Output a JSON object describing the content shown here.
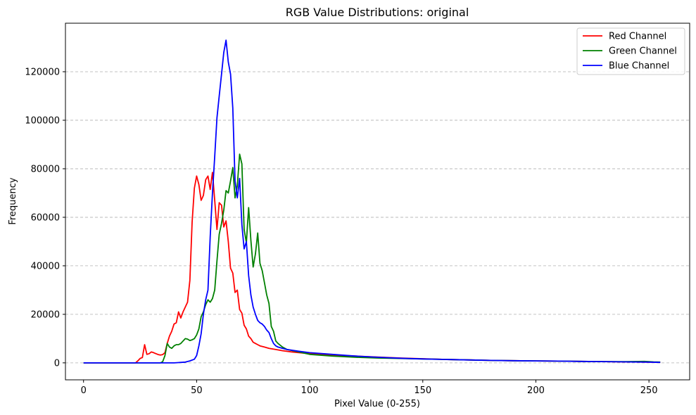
{
  "chart_data": {
    "type": "line",
    "title": "RGB Value Distributions: original",
    "xlabel": "Pixel Value (0-255)",
    "ylabel": "Frequency",
    "xlim": [
      -8,
      268
    ],
    "ylim": [
      -7000,
      140000
    ],
    "x_ticks": [
      0,
      50,
      100,
      150,
      200,
      250
    ],
    "y_ticks": [
      0,
      20000,
      40000,
      60000,
      80000,
      100000,
      120000
    ],
    "grid": "y-dashed",
    "legend": "top-right",
    "series": [
      {
        "name": "Red Channel",
        "color": "#ff0000",
        "points": [
          [
            0,
            0
          ],
          [
            10,
            0
          ],
          [
            20,
            0
          ],
          [
            23,
            0
          ],
          [
            24,
            800
          ],
          [
            25,
            1800
          ],
          [
            26,
            2200
          ],
          [
            27,
            7500
          ],
          [
            28,
            3500
          ],
          [
            29,
            3800
          ],
          [
            30,
            4500
          ],
          [
            31,
            4200
          ],
          [
            32,
            3800
          ],
          [
            33,
            3400
          ],
          [
            34,
            3200
          ],
          [
            35,
            3400
          ],
          [
            36,
            4200
          ],
          [
            37,
            8000
          ],
          [
            38,
            11000
          ],
          [
            39,
            13000
          ],
          [
            40,
            16000
          ],
          [
            41,
            16500
          ],
          [
            42,
            21000
          ],
          [
            43,
            18500
          ],
          [
            44,
            21000
          ],
          [
            45,
            23000
          ],
          [
            46,
            25000
          ],
          [
            47,
            34000
          ],
          [
            48,
            58000
          ],
          [
            49,
            72000
          ],
          [
            50,
            77000
          ],
          [
            51,
            73500
          ],
          [
            52,
            67000
          ],
          [
            53,
            69000
          ],
          [
            54,
            75500
          ],
          [
            55,
            77000
          ],
          [
            56,
            71500
          ],
          [
            57,
            78500
          ],
          [
            58,
            67000
          ],
          [
            59,
            55000
          ],
          [
            60,
            66000
          ],
          [
            61,
            65000
          ],
          [
            62,
            56000
          ],
          [
            63,
            58500
          ],
          [
            64,
            50000
          ],
          [
            65,
            39000
          ],
          [
            66,
            37000
          ],
          [
            67,
            29000
          ],
          [
            68,
            30000
          ],
          [
            69,
            22000
          ],
          [
            70,
            20500
          ],
          [
            71,
            15500
          ],
          [
            72,
            14000
          ],
          [
            73,
            11000
          ],
          [
            74,
            10000
          ],
          [
            75,
            8500
          ],
          [
            76,
            8000
          ],
          [
            77,
            7500
          ],
          [
            78,
            7000
          ],
          [
            80,
            6500
          ],
          [
            82,
            6000
          ],
          [
            85,
            5500
          ],
          [
            88,
            5000
          ],
          [
            92,
            4500
          ],
          [
            100,
            3800
          ],
          [
            110,
            3200
          ],
          [
            120,
            2800
          ],
          [
            130,
            2400
          ],
          [
            140,
            2000
          ],
          [
            150,
            1700
          ],
          [
            160,
            1400
          ],
          [
            170,
            1200
          ],
          [
            180,
            1000
          ],
          [
            190,
            900
          ],
          [
            200,
            800
          ],
          [
            210,
            700
          ],
          [
            220,
            600
          ],
          [
            230,
            500
          ],
          [
            240,
            400
          ],
          [
            250,
            300
          ],
          [
            255,
            200
          ]
        ]
      },
      {
        "name": "Green Channel",
        "color": "#008000",
        "points": [
          [
            0,
            0
          ],
          [
            10,
            0
          ],
          [
            20,
            0
          ],
          [
            30,
            0
          ],
          [
            34,
            0
          ],
          [
            35,
            500
          ],
          [
            36,
            3000
          ],
          [
            37,
            8000
          ],
          [
            38,
            6500
          ],
          [
            39,
            6000
          ],
          [
            40,
            7000
          ],
          [
            41,
            7500
          ],
          [
            42,
            7500
          ],
          [
            43,
            8000
          ],
          [
            44,
            9000
          ],
          [
            45,
            10000
          ],
          [
            46,
            9800
          ],
          [
            47,
            9200
          ],
          [
            48,
            9500
          ],
          [
            49,
            10000
          ],
          [
            50,
            11500
          ],
          [
            51,
            14000
          ],
          [
            52,
            19000
          ],
          [
            53,
            21000
          ],
          [
            54,
            24000
          ],
          [
            55,
            26000
          ],
          [
            56,
            25000
          ],
          [
            57,
            26500
          ],
          [
            58,
            30000
          ],
          [
            59,
            42000
          ],
          [
            60,
            53000
          ],
          [
            61,
            57500
          ],
          [
            62,
            63000
          ],
          [
            63,
            71000
          ],
          [
            64,
            70000
          ],
          [
            65,
            75000
          ],
          [
            66,
            80500
          ],
          [
            67,
            68000
          ],
          [
            68,
            73000
          ],
          [
            69,
            86000
          ],
          [
            70,
            82000
          ],
          [
            71,
            55000
          ],
          [
            72,
            49500
          ],
          [
            73,
            64000
          ],
          [
            74,
            50500
          ],
          [
            75,
            39500
          ],
          [
            76,
            45000
          ],
          [
            77,
            53500
          ],
          [
            78,
            41000
          ],
          [
            79,
            38000
          ],
          [
            80,
            33000
          ],
          [
            81,
            28000
          ],
          [
            82,
            24500
          ],
          [
            83,
            15000
          ],
          [
            84,
            13000
          ],
          [
            85,
            9000
          ],
          [
            86,
            8000
          ],
          [
            88,
            6500
          ],
          [
            90,
            5500
          ],
          [
            95,
            4500
          ],
          [
            100,
            3500
          ],
          [
            110,
            2800
          ],
          [
            120,
            2300
          ],
          [
            130,
            2000
          ],
          [
            140,
            1800
          ],
          [
            150,
            1600
          ],
          [
            160,
            1400
          ],
          [
            170,
            1200
          ],
          [
            180,
            1000
          ],
          [
            190,
            900
          ],
          [
            200,
            800
          ],
          [
            210,
            700
          ],
          [
            220,
            600
          ],
          [
            230,
            500
          ],
          [
            240,
            500
          ],
          [
            248,
            600
          ],
          [
            252,
            400
          ],
          [
            255,
            300
          ]
        ]
      },
      {
        "name": "Blue Channel",
        "color": "#0000ff",
        "points": [
          [
            0,
            0
          ],
          [
            10,
            0
          ],
          [
            20,
            0
          ],
          [
            30,
            0
          ],
          [
            40,
            0
          ],
          [
            45,
            300
          ],
          [
            47,
            800
          ],
          [
            49,
            1500
          ],
          [
            50,
            3000
          ],
          [
            51,
            7000
          ],
          [
            52,
            12000
          ],
          [
            53,
            20000
          ],
          [
            54,
            26000
          ],
          [
            55,
            30000
          ],
          [
            56,
            52000
          ],
          [
            57,
            70000
          ],
          [
            58,
            85000
          ],
          [
            59,
            101000
          ],
          [
            60,
            110000
          ],
          [
            61,
            119000
          ],
          [
            62,
            128000
          ],
          [
            63,
            133000
          ],
          [
            64,
            124000
          ],
          [
            65,
            119000
          ],
          [
            66,
            105000
          ],
          [
            67,
            75000
          ],
          [
            68,
            68000
          ],
          [
            69,
            76000
          ],
          [
            70,
            57000
          ],
          [
            71,
            47000
          ],
          [
            72,
            50000
          ],
          [
            73,
            36000
          ],
          [
            74,
            28000
          ],
          [
            75,
            23000
          ],
          [
            76,
            20000
          ],
          [
            77,
            17500
          ],
          [
            78,
            16500
          ],
          [
            79,
            16000
          ],
          [
            80,
            15000
          ],
          [
            81,
            13500
          ],
          [
            82,
            12500
          ],
          [
            83,
            10000
          ],
          [
            84,
            8000
          ],
          [
            85,
            7000
          ],
          [
            86,
            6500
          ],
          [
            88,
            6000
          ],
          [
            90,
            5500
          ],
          [
            95,
            4800
          ],
          [
            100,
            4200
          ],
          [
            110,
            3500
          ],
          [
            120,
            2800
          ],
          [
            130,
            2300
          ],
          [
            140,
            1900
          ],
          [
            150,
            1600
          ],
          [
            160,
            1400
          ],
          [
            170,
            1200
          ],
          [
            180,
            1000
          ],
          [
            190,
            900
          ],
          [
            200,
            800
          ],
          [
            210,
            700
          ],
          [
            220,
            600
          ],
          [
            230,
            500
          ],
          [
            240,
            400
          ],
          [
            250,
            300
          ],
          [
            255,
            200
          ]
        ]
      }
    ]
  }
}
